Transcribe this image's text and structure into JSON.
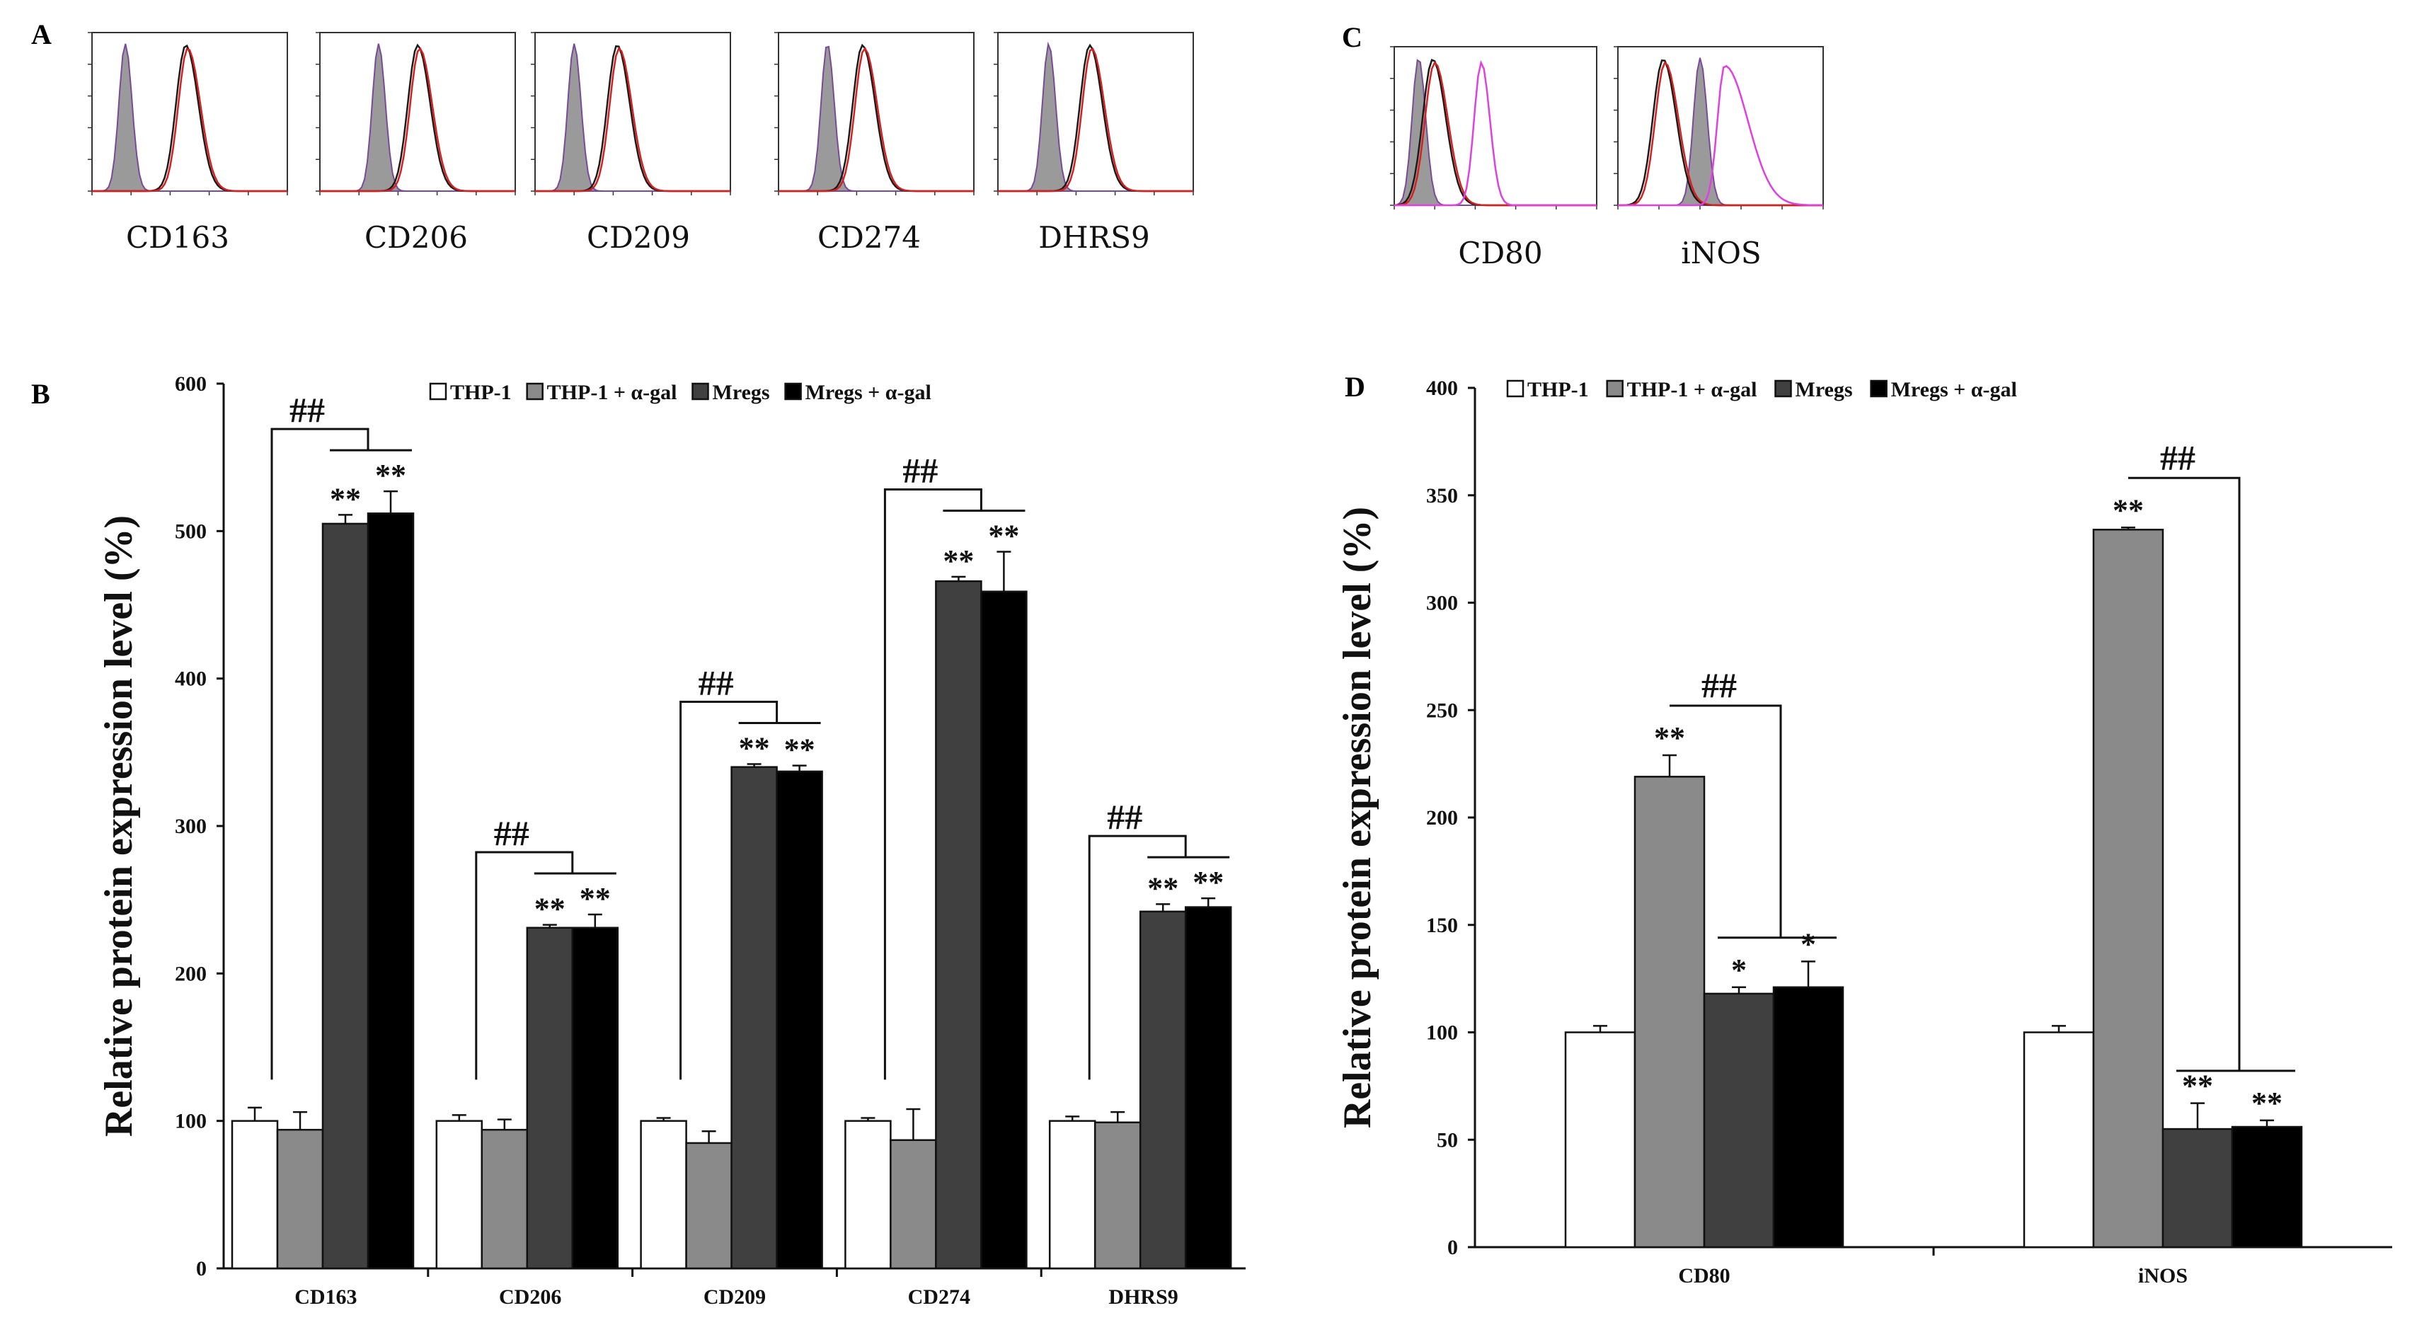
{
  "panels": {
    "a": "A",
    "b": "B",
    "c": "C",
    "d": "D"
  },
  "histograms": {
    "panel_a": [
      "CD163",
      "CD206",
      "CD209",
      "CD274",
      "DHRS9"
    ],
    "panel_c": [
      "CD80",
      "iNOS"
    ],
    "colors": {
      "isotype": "#9a9a9a",
      "thp1": "#1a1a1a",
      "mregs": "#d62020",
      "m1": "#e040e0"
    }
  },
  "chart_data": [
    {
      "type": "bar",
      "panel": "B",
      "ylabel": "Relative protein expression level (%)",
      "ylim": [
        0,
        600
      ],
      "yticks": [
        0,
        100,
        200,
        300,
        400,
        500,
        600
      ],
      "categories": [
        "CD163",
        "CD206",
        "CD209",
        "CD274",
        "DHRS9"
      ],
      "series": [
        {
          "name": "THP-1",
          "color": "#ffffff",
          "values": [
            100,
            100,
            100,
            100,
            100
          ],
          "errors": [
            9,
            4,
            2,
            2,
            3
          ]
        },
        {
          "name": "THP-1 + α-gal",
          "color": "#8a8a8a",
          "values": [
            94,
            94,
            85,
            87,
            99
          ],
          "errors": [
            12,
            7,
            8,
            21,
            7
          ]
        },
        {
          "name": "Mregs",
          "color": "#404040",
          "values": [
            505,
            231,
            340,
            466,
            242
          ],
          "errors": [
            6,
            2,
            2,
            3,
            5
          ]
        },
        {
          "name": "Mregs + α-gal",
          "color": "#000000",
          "values": [
            512,
            231,
            337,
            459,
            245
          ],
          "errors": [
            15,
            9,
            4,
            27,
            6
          ]
        }
      ],
      "significance": [
        {
          "category": "CD163",
          "marks": [
            "**",
            "**"
          ],
          "hash": "##"
        },
        {
          "category": "CD206",
          "marks": [
            "**",
            "**"
          ],
          "hash": "##"
        },
        {
          "category": "CD209",
          "marks": [
            "**",
            "**"
          ],
          "hash": "##"
        },
        {
          "category": "CD274",
          "marks": [
            "**",
            "**"
          ],
          "hash": "##"
        },
        {
          "category": "DHRS9",
          "marks": [
            "**",
            "**"
          ],
          "hash": "##"
        }
      ]
    },
    {
      "type": "bar",
      "panel": "D",
      "ylabel": "Relative protein expression level (%)",
      "ylim": [
        0,
        400
      ],
      "yticks": [
        0,
        50,
        100,
        150,
        200,
        250,
        300,
        350,
        400
      ],
      "categories": [
        "CD80",
        "iNOS"
      ],
      "series": [
        {
          "name": "THP-1",
          "color": "#ffffff",
          "values": [
            100,
            100
          ],
          "errors": [
            3,
            3
          ]
        },
        {
          "name": "THP-1 + α-gal",
          "color": "#8a8a8a",
          "values": [
            219,
            334
          ],
          "errors": [
            10,
            1
          ]
        },
        {
          "name": "Mregs",
          "color": "#404040",
          "values": [
            118,
            55
          ],
          "errors": [
            3,
            12
          ]
        },
        {
          "name": "Mregs + α-gal",
          "color": "#000000",
          "values": [
            121,
            56
          ],
          "errors": [
            12,
            3
          ]
        }
      ],
      "significance": [
        {
          "category": "CD80",
          "marks": [
            "**",
            "*",
            "*"
          ],
          "hash": "##"
        },
        {
          "category": "iNOS",
          "marks": [
            "**",
            "**",
            "**"
          ],
          "hash": "##"
        }
      ]
    }
  ]
}
